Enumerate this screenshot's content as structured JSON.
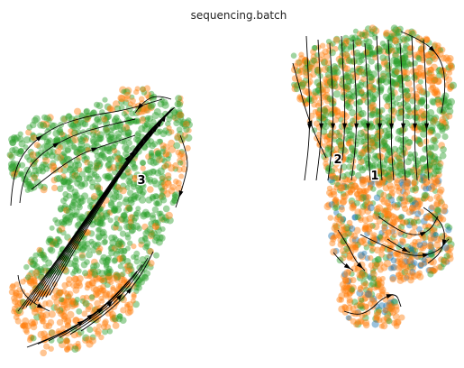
{
  "chart_data": {
    "type": "scatter",
    "title": "sequencing.batch",
    "xlabel": "",
    "ylabel": "",
    "grid": false,
    "legend": "none",
    "overlay": "velocity-streamlines",
    "series": [
      {
        "color": "#ff7f0e",
        "share": 0.46
      },
      {
        "color": "#2ca02c",
        "share": 0.5
      },
      {
        "color": "#1f77b4",
        "share": 0.04
      }
    ],
    "cluster_labels": [
      "3",
      "2",
      "1"
    ],
    "point_alpha": 0.45
  }
}
